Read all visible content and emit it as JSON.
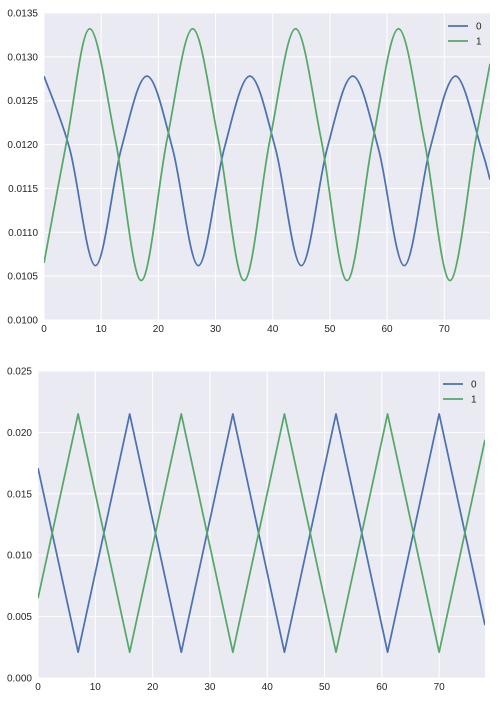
{
  "chart_data": [
    {
      "type": "line",
      "title": "",
      "xlabel": "",
      "ylabel": "",
      "xlim": [
        0,
        78
      ],
      "ylim": [
        0.01,
        0.0135
      ],
      "x_ticks": [
        0,
        10,
        20,
        30,
        40,
        50,
        60,
        70
      ],
      "x_tick_labels": [
        "0",
        "10",
        "20",
        "30",
        "40",
        "50",
        "60",
        "70"
      ],
      "y_ticks": [
        0.01,
        0.0105,
        0.011,
        0.0115,
        0.012,
        0.0125,
        0.013,
        0.0135
      ],
      "y_tick_labels": [
        "0.0100",
        "0.0105",
        "0.0110",
        "0.0115",
        "0.0120",
        "0.0125",
        "0.0130",
        "0.0135"
      ],
      "grid": true,
      "legend_position": "top-right",
      "style": "smooth-wave",
      "series": [
        {
          "name": "0",
          "color": "#4C72B0",
          "x": [
            0,
            4.5,
            9,
            13.5,
            18,
            22.5,
            27,
            31.5,
            36,
            40.5,
            45,
            49.5,
            54,
            58.5,
            63,
            67.5,
            72,
            76.5,
            78
          ],
          "y": [
            0.01278,
            0.01195,
            0.01062,
            0.01195,
            0.01278,
            0.01195,
            0.01062,
            0.01195,
            0.01278,
            0.01195,
            0.01062,
            0.01195,
            0.01278,
            0.01195,
            0.01062,
            0.01195,
            0.01278,
            0.01195,
            0.0116
          ]
        },
        {
          "name": "1",
          "color": "#55A868",
          "x": [
            0,
            4,
            8,
            12.5,
            17,
            21.5,
            26,
            30.5,
            35,
            39.5,
            44,
            48.5,
            53,
            57.5,
            62,
            66.5,
            71,
            75.5,
            78
          ],
          "y": [
            0.01065,
            0.01205,
            0.01332,
            0.01205,
            0.01045,
            0.01205,
            0.01332,
            0.01205,
            0.01045,
            0.01205,
            0.01332,
            0.01205,
            0.01045,
            0.01205,
            0.01332,
            0.01205,
            0.01045,
            0.01205,
            0.01292
          ]
        }
      ]
    },
    {
      "type": "line",
      "title": "",
      "xlabel": "",
      "ylabel": "",
      "xlim": [
        0,
        78
      ],
      "ylim": [
        0.0,
        0.025
      ],
      "x_ticks": [
        0,
        10,
        20,
        30,
        40,
        50,
        60,
        70
      ],
      "x_tick_labels": [
        "0",
        "10",
        "20",
        "30",
        "40",
        "50",
        "60",
        "70"
      ],
      "y_ticks": [
        0.0,
        0.005,
        0.01,
        0.015,
        0.02,
        0.025
      ],
      "y_tick_labels": [
        "0.000",
        "0.005",
        "0.010",
        "0.015",
        "0.020",
        "0.025"
      ],
      "grid": true,
      "legend_position": "top-right",
      "style": "triangle-wave",
      "series": [
        {
          "name": "0",
          "color": "#4C72B0",
          "x": [
            0,
            7,
            16,
            25,
            34,
            43,
            52,
            61,
            70,
            78
          ],
          "y": [
            0.0171,
            0.0021,
            0.0215,
            0.0021,
            0.0215,
            0.0021,
            0.0215,
            0.0021,
            0.0215,
            0.0043
          ]
        },
        {
          "name": "1",
          "color": "#55A868",
          "x": [
            0,
            7,
            16,
            25,
            34,
            43,
            52,
            61,
            70,
            78
          ],
          "y": [
            0.0065,
            0.0215,
            0.0021,
            0.0215,
            0.0021,
            0.0215,
            0.0021,
            0.0215,
            0.0021,
            0.0194
          ]
        }
      ]
    }
  ],
  "theme": {
    "panel_bg": "#EAEAF2",
    "grid_color": "#FFFFFF",
    "tick_color": "#262626"
  }
}
